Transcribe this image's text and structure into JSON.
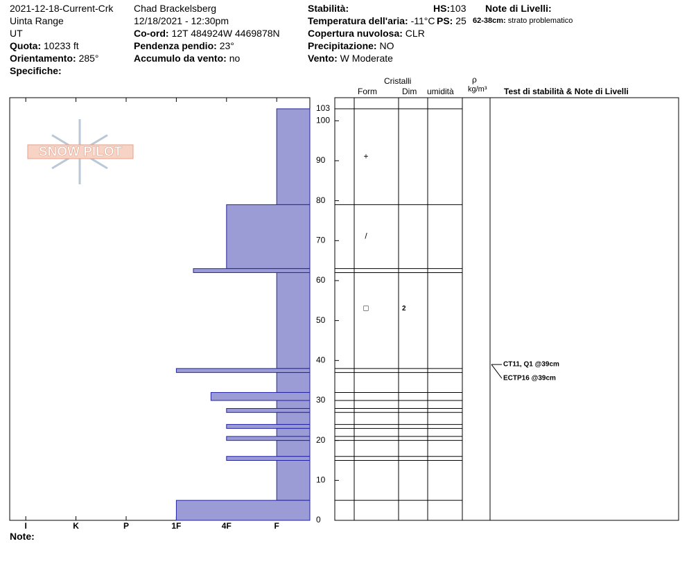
{
  "header": {
    "site": "2021-12-18-Current-Crk",
    "range": "Uinta Range",
    "state": "UT",
    "elevation_label": "Quota:",
    "elevation": "10233 ft",
    "aspect_label": "Orientamento:",
    "aspect": "285°",
    "specifics_label": "Specifiche:",
    "observer": "Chad Brackelsberg",
    "datetime": "12/18/2021 - 12:30pm",
    "coord_label": "Co-ord:",
    "coord": "12T 484924W 4469878N",
    "slope_label": "Pendenza pendio:",
    "slope": "23°",
    "wind_loading_label": "Accumulo da vento:",
    "wind_loading": "no",
    "stability_label": "Stabilità:",
    "air_temp_label": "Temperatura dell'aria:",
    "air_temp": "-11°C",
    "sky_label": "Copertura nuvolosa:",
    "sky": "CLR",
    "precip_label": "Precipitazione:",
    "precip": "NO",
    "wind_label": "Vento:",
    "wind": "W Moderate",
    "hs_label": "HS:",
    "hs": "103",
    "ps_label": "PS:",
    "ps": "25",
    "layer_notes_label": "Note di Livelli:",
    "layer_note_range": "62-38cm:",
    "layer_note": "strato problematico",
    "notes_label": "Note:",
    "logo": "SNOW PILOT"
  },
  "columns": {
    "crystals": "Cristalli",
    "form": "Form",
    "size": "Dim",
    "moisture": "umidità",
    "rho": "ρ",
    "density": "kg/m³",
    "tests": "Test di stabilità & Note di Livelli"
  },
  "chart_data": {
    "type": "snow-profile",
    "xlim": [
      -0.32,
      5.66
    ],
    "xticks": [
      {
        "value": 0,
        "label": "I"
      },
      {
        "value": 1,
        "label": "K"
      },
      {
        "value": 2,
        "label": "P"
      },
      {
        "value": 3,
        "label": "1F"
      },
      {
        "value": 4,
        "label": "4F"
      },
      {
        "value": 5,
        "label": "F"
      }
    ],
    "ylim": [
      0,
      103
    ],
    "yticks": [
      0,
      10,
      20,
      30,
      40,
      50,
      60,
      70,
      80,
      90,
      100,
      103
    ],
    "color": "#9b9bd6",
    "layers": [
      {
        "top": 103,
        "bottom": 79,
        "hardness": 5
      },
      {
        "top": 79,
        "bottom": 63,
        "hardness": 4
      },
      {
        "top": 63,
        "bottom": 62,
        "hardness": 3.34
      },
      {
        "top": 62,
        "bottom": 38,
        "hardness": 5
      },
      {
        "top": 38,
        "bottom": 37,
        "hardness": 3
      },
      {
        "top": 37,
        "bottom": 32,
        "hardness": 5
      },
      {
        "top": 32,
        "bottom": 30,
        "hardness": 3.69
      },
      {
        "top": 30,
        "bottom": 28,
        "hardness": 5
      },
      {
        "top": 28,
        "bottom": 27,
        "hardness": 4
      },
      {
        "top": 27,
        "bottom": 24,
        "hardness": 5
      },
      {
        "top": 24,
        "bottom": 23,
        "hardness": 4
      },
      {
        "top": 23,
        "bottom": 21,
        "hardness": 5
      },
      {
        "top": 21,
        "bottom": 20,
        "hardness": 4
      },
      {
        "top": 20,
        "bottom": 16,
        "hardness": 5
      },
      {
        "top": 16,
        "bottom": 15,
        "hardness": 4
      },
      {
        "top": 15,
        "bottom": 5,
        "hardness": 5
      },
      {
        "top": 5,
        "bottom": 0,
        "hardness": 3
      }
    ],
    "grains": [
      {
        "depth": 91,
        "form": "+"
      },
      {
        "depth": 71,
        "form": "/"
      },
      {
        "depth": 53,
        "form": "□",
        "size": "2"
      }
    ],
    "tests": [
      {
        "depth": 39,
        "label": "CT11, Q1 @39cm"
      },
      {
        "depth": 39,
        "label": "ECTP16 @39cm"
      }
    ]
  }
}
